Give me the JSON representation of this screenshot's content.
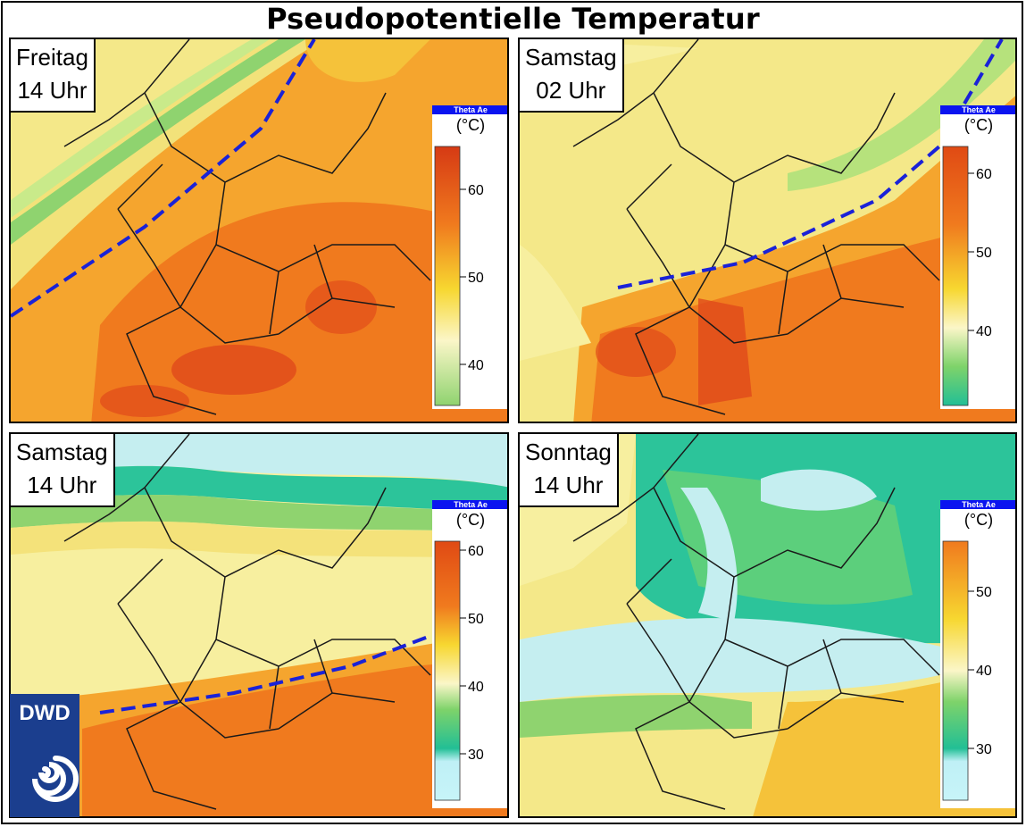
{
  "title": "Pseudopotentielle Temperatur",
  "panels": [
    {
      "day": "Freitag",
      "time": "14 Uhr"
    },
    {
      "day": "Samstag",
      "time": "02 Uhr"
    },
    {
      "day": "Samstag",
      "time": "14 Uhr"
    },
    {
      "day": "Sonntag",
      "time": "14 Uhr"
    }
  ],
  "legend": {
    "header": "Theta Ae",
    "unit": "(°C)",
    "ticks": {
      "p1": [
        "60",
        "50",
        "40"
      ],
      "p2": [
        "60",
        "50",
        "40"
      ],
      "p3": [
        "60",
        "50",
        "40",
        "30"
      ],
      "p4": [
        "50",
        "40",
        "30"
      ]
    }
  },
  "logo": {
    "text": "DWD"
  },
  "colors": {
    "front_line": "#1a22d8",
    "legend_header": "#0a14f0",
    "logo_bg": "#1b3e8e",
    "warm": "#f07a1e",
    "hot": "#e04a1a",
    "yellow": "#f4e889",
    "green": "#7ed36a",
    "teal": "#2cc49a",
    "cyan": "#bff0f6"
  }
}
